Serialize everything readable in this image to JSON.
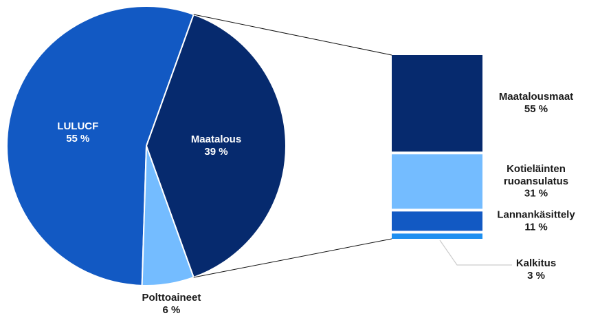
{
  "chart_data": [
    {
      "type": "pie",
      "categories": [
        "LULUCF",
        "Maatalous",
        "Polttoaineet"
      ],
      "values": [
        55,
        39,
        6
      ],
      "value_labels": [
        "55 %",
        "39 %",
        "6 %"
      ],
      "colors": [
        "#1259c3",
        "#062a6e",
        "#74bcff"
      ]
    },
    {
      "type": "bar",
      "categories": [
        "Maatalousmaat",
        "Kotieläinten ruoansulatus",
        "Lannankäsittely",
        "Kalkitus"
      ],
      "values": [
        55,
        31,
        11,
        3
      ],
      "value_labels": [
        "55 %",
        "31 %",
        "11 %",
        "3 %"
      ],
      "colors": [
        "#062a6e",
        "#74bcff",
        "#1259c3",
        "#1e8ff0"
      ]
    }
  ]
}
